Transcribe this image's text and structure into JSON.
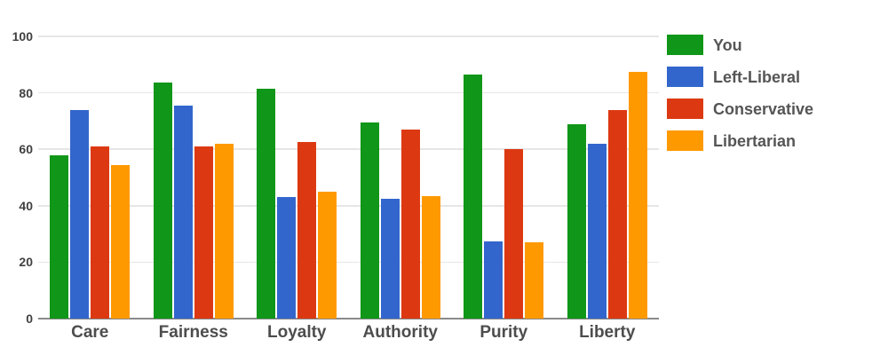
{
  "chart_data": {
    "type": "bar",
    "title": "",
    "xlabel": "",
    "ylabel": "",
    "categories": [
      "Care",
      "Fairness",
      "Loyalty",
      "Authority",
      "Purity",
      "Liberty"
    ],
    "series": [
      {
        "name": "You",
        "color": "#109618",
        "values": [
          58,
          83.5,
          81.5,
          69.5,
          86.5,
          69
        ]
      },
      {
        "name": "Left-Liberal",
        "color": "#3366CC",
        "values": [
          74,
          75.5,
          43,
          42.5,
          27.5,
          62
        ]
      },
      {
        "name": "Conservative",
        "color": "#DC3912",
        "values": [
          61,
          61,
          62.5,
          67,
          60,
          74
        ]
      },
      {
        "name": "Libertarian",
        "color": "#FF9900",
        "values": [
          54.5,
          62,
          45,
          43.5,
          27,
          87.5
        ]
      }
    ],
    "ylim": [
      0,
      100
    ],
    "yticks": [
      0,
      20,
      40,
      60,
      80,
      100
    ],
    "grid": true,
    "legend_position": "right",
    "background_color": "#ffffff",
    "gridline_color": "#e6e6e6",
    "axis_line_color": "#8a8a8a"
  }
}
